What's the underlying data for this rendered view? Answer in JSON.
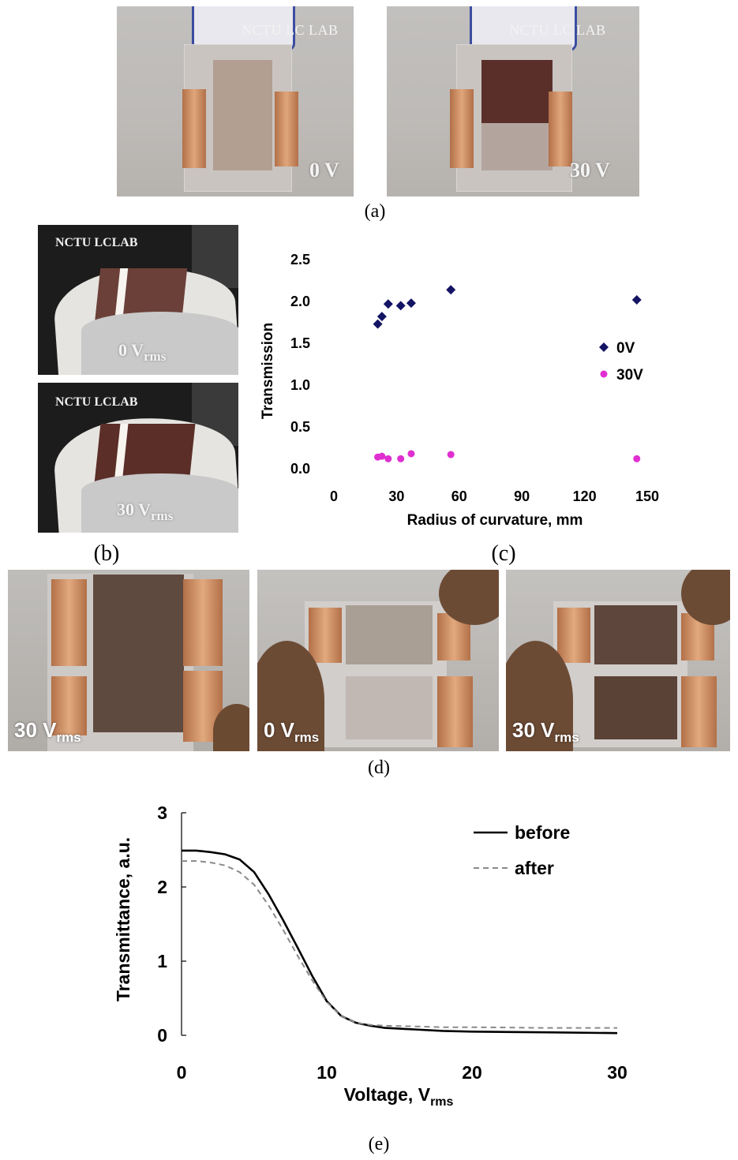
{
  "panels": {
    "a": {
      "letter": "(a)",
      "left_lab_text": "NCTU LC LAB",
      "right_lab_text": "NCTU LC LAB",
      "left_voltage": "0 V",
      "right_voltage": "30 V"
    },
    "b": {
      "letter": "(b)",
      "top_lab_text": "NCTU LCLAB",
      "bottom_lab_text": "NCTU LCLAB",
      "top_voltage": "0 V",
      "top_voltage_sub": "rms",
      "bottom_voltage": "30 V",
      "bottom_voltage_sub": "rms"
    },
    "c": {
      "letter": "(c)"
    },
    "d": {
      "letter": "(d)",
      "photos": [
        {
          "voltage": "30 V",
          "sub": "rms"
        },
        {
          "voltage": "0 V",
          "sub": "rms"
        },
        {
          "voltage": "30 V",
          "sub": "rms"
        }
      ]
    },
    "e": {
      "letter": "(e)"
    }
  },
  "colors": {
    "series_0v": "#141464",
    "series_30v": "#e02fd0",
    "curve_before": "#000000",
    "curve_after": "#8a8a8a",
    "copper": "#c98a5c",
    "film_dark": "#5c4034",
    "film_light": "#b5a599"
  },
  "chart_data": [
    {
      "type": "scatter",
      "panel": "c",
      "xlabel": "Radius of curvature, mm",
      "ylabel": "Transmission",
      "xlim": [
        0,
        150
      ],
      "ylim": [
        0,
        2.5
      ],
      "xticks": [
        "0",
        "30",
        "60",
        "90",
        "120",
        "150"
      ],
      "yticks": [
        "0.0",
        "0.5",
        "1.0",
        "1.5",
        "2.0",
        "2.5"
      ],
      "legend_position": "right",
      "series": [
        {
          "name": "0V",
          "marker": "diamond",
          "x": [
            21,
            23,
            26,
            32,
            37,
            56,
            145
          ],
          "y": [
            1.72,
            1.81,
            1.96,
            1.94,
            1.97,
            2.13,
            2.01
          ]
        },
        {
          "name": "30V",
          "marker": "circle",
          "x": [
            21,
            23,
            26,
            32,
            37,
            56,
            145
          ],
          "y": [
            0.13,
            0.14,
            0.11,
            0.11,
            0.17,
            0.16,
            0.11
          ]
        }
      ]
    },
    {
      "type": "line",
      "panel": "e",
      "xlabel": "Voltage, V",
      "xlabel_sub": "rms",
      "ylabel": "Transmittance, a.u.",
      "xlim": [
        0,
        30
      ],
      "ylim": [
        0,
        3
      ],
      "xticks": [
        "0",
        "10",
        "20",
        "30"
      ],
      "yticks": [
        "0",
        "1",
        "2",
        "3"
      ],
      "legend_position": "top-right",
      "series": [
        {
          "name": "before",
          "style": "solid",
          "x": [
            0,
            1,
            2,
            3,
            4,
            5,
            6,
            7,
            8,
            9,
            10,
            11,
            12,
            13,
            14,
            16,
            18,
            20,
            25,
            30
          ],
          "y": [
            2.49,
            2.49,
            2.47,
            2.44,
            2.37,
            2.2,
            1.9,
            1.55,
            1.18,
            0.8,
            0.46,
            0.26,
            0.17,
            0.13,
            0.1,
            0.08,
            0.06,
            0.05,
            0.04,
            0.03
          ]
        },
        {
          "name": "after",
          "style": "dashed",
          "x": [
            0,
            1,
            2,
            3,
            4,
            5,
            6,
            7,
            8,
            9,
            10,
            11,
            12,
            13,
            14,
            16,
            18,
            20,
            25,
            30
          ],
          "y": [
            2.35,
            2.35,
            2.33,
            2.29,
            2.2,
            2.03,
            1.75,
            1.42,
            1.07,
            0.74,
            0.45,
            0.26,
            0.17,
            0.14,
            0.13,
            0.12,
            0.11,
            0.11,
            0.1,
            0.1
          ]
        }
      ]
    }
  ]
}
